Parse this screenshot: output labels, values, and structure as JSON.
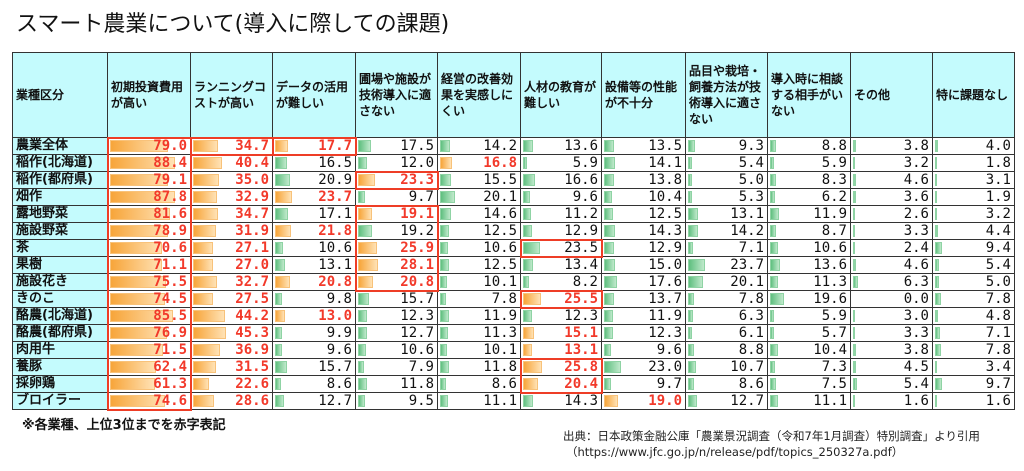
{
  "title": "スマート農業について(導入に際しての課題)",
  "colors": {
    "header_bg": "#c4fbfd",
    "highlight": "#f2392a",
    "bar_top3": "#f7a53a",
    "bar_other": "#5fbf7f"
  },
  "chart_data": {
    "type": "table",
    "title": "スマート農業について(導入に際しての課題)",
    "row_header": "業種区分",
    "columns": [
      "初期投資費用が高い",
      "ランニングコストが高い",
      "データの活用が難しい",
      "圃場や施設が技術導入に適さない",
      "経営の改善効果を実感しにくい",
      "人材の教育が難しい",
      "設備等の性能が不十分",
      "品目や栽培・飼養方法が技術導入に適さない",
      "導入時に相談する相手がいない",
      "その他",
      "特に課題なし"
    ],
    "rows": [
      {
        "label": "農業全体",
        "values": [
          79.0,
          34.7,
          17.7,
          17.5,
          14.2,
          13.6,
          13.5,
          9.3,
          8.8,
          3.8,
          4.0
        ],
        "top3": [
          0,
          1,
          2
        ]
      },
      {
        "label": "稲作(北海道)",
        "values": [
          88.4,
          40.4,
          16.5,
          12.0,
          16.8,
          5.9,
          14.1,
          5.4,
          5.9,
          3.2,
          1.8
        ],
        "top3": [
          0,
          1,
          4
        ]
      },
      {
        "label": "稲作(都府県)",
        "values": [
          79.1,
          35.0,
          20.9,
          23.3,
          15.5,
          16.6,
          13.8,
          5.0,
          8.3,
          4.6,
          3.1
        ],
        "top3": [
          0,
          1,
          3
        ]
      },
      {
        "label": "畑作",
        "values": [
          87.8,
          32.9,
          23.7,
          9.7,
          20.1,
          9.6,
          10.4,
          5.3,
          6.2,
          3.6,
          1.9
        ],
        "top3": [
          0,
          1,
          2
        ]
      },
      {
        "label": "露地野菜",
        "values": [
          81.6,
          34.7,
          17.1,
          19.1,
          14.6,
          11.2,
          12.5,
          13.1,
          11.9,
          2.6,
          3.2
        ],
        "top3": [
          0,
          1,
          3
        ]
      },
      {
        "label": "施設野菜",
        "values": [
          78.9,
          31.9,
          21.8,
          19.2,
          12.5,
          12.9,
          14.3,
          14.2,
          8.7,
          3.3,
          4.4
        ],
        "top3": [
          0,
          1,
          2
        ]
      },
      {
        "label": "茶",
        "values": [
          70.6,
          27.1,
          10.6,
          25.9,
          10.6,
          23.5,
          12.9,
          7.1,
          10.6,
          2.4,
          9.4
        ],
        "top3": [
          0,
          1,
          3
        ]
      },
      {
        "label": "果樹",
        "values": [
          71.1,
          27.0,
          13.1,
          28.1,
          12.5,
          13.4,
          15.0,
          23.7,
          13.6,
          4.6,
          5.4
        ],
        "top3": [
          0,
          1,
          3
        ]
      },
      {
        "label": "施設花き",
        "values": [
          75.5,
          32.7,
          20.8,
          20.8,
          10.1,
          8.2,
          17.6,
          20.1,
          11.3,
          6.3,
          5.0
        ],
        "top3": [
          0,
          1,
          2,
          3
        ]
      },
      {
        "label": "きのこ",
        "values": [
          74.5,
          27.5,
          9.8,
          15.7,
          7.8,
          25.5,
          13.7,
          7.8,
          19.6,
          0.0,
          7.8
        ],
        "top3": [
          0,
          1,
          5
        ]
      },
      {
        "label": "酪農(北海道)",
        "values": [
          85.5,
          44.2,
          13.0,
          12.3,
          11.9,
          12.3,
          11.9,
          6.3,
          5.9,
          3.0,
          4.8
        ],
        "top3": [
          0,
          1,
          2
        ]
      },
      {
        "label": "酪農(都府県)",
        "values": [
          76.9,
          45.3,
          9.9,
          12.7,
          11.3,
          15.1,
          12.3,
          6.1,
          5.7,
          3.3,
          7.1
        ],
        "top3": [
          0,
          1,
          5
        ]
      },
      {
        "label": "肉用牛",
        "values": [
          71.5,
          36.9,
          9.6,
          10.6,
          10.1,
          13.1,
          9.6,
          8.8,
          10.4,
          3.8,
          7.8
        ],
        "top3": [
          0,
          1,
          5
        ]
      },
      {
        "label": "養豚",
        "values": [
          62.4,
          31.5,
          15.7,
          7.9,
          11.8,
          25.8,
          23.0,
          10.7,
          7.3,
          4.5,
          3.4
        ],
        "top3": [
          0,
          1,
          5
        ]
      },
      {
        "label": "採卵鶏",
        "values": [
          61.3,
          22.6,
          8.6,
          11.8,
          8.6,
          20.4,
          9.7,
          8.6,
          7.5,
          5.4,
          9.7
        ],
        "top3": [
          0,
          1,
          5
        ]
      },
      {
        "label": "ブロイラー",
        "values": [
          74.6,
          28.6,
          12.7,
          9.5,
          11.1,
          14.3,
          19.0,
          12.7,
          11.1,
          1.6,
          1.6
        ],
        "top3": [
          0,
          1,
          6
        ]
      }
    ]
  },
  "footnote": "※各業種、上位3位までを赤字表記",
  "source": {
    "line1": "出典：日本政策金融公庫「農業景況調査（令和7年1月調査）特別調査」より引用",
    "line2": "（https://www.jfc.go.jp/n/release/pdf/topics_250327a.pdf）"
  }
}
